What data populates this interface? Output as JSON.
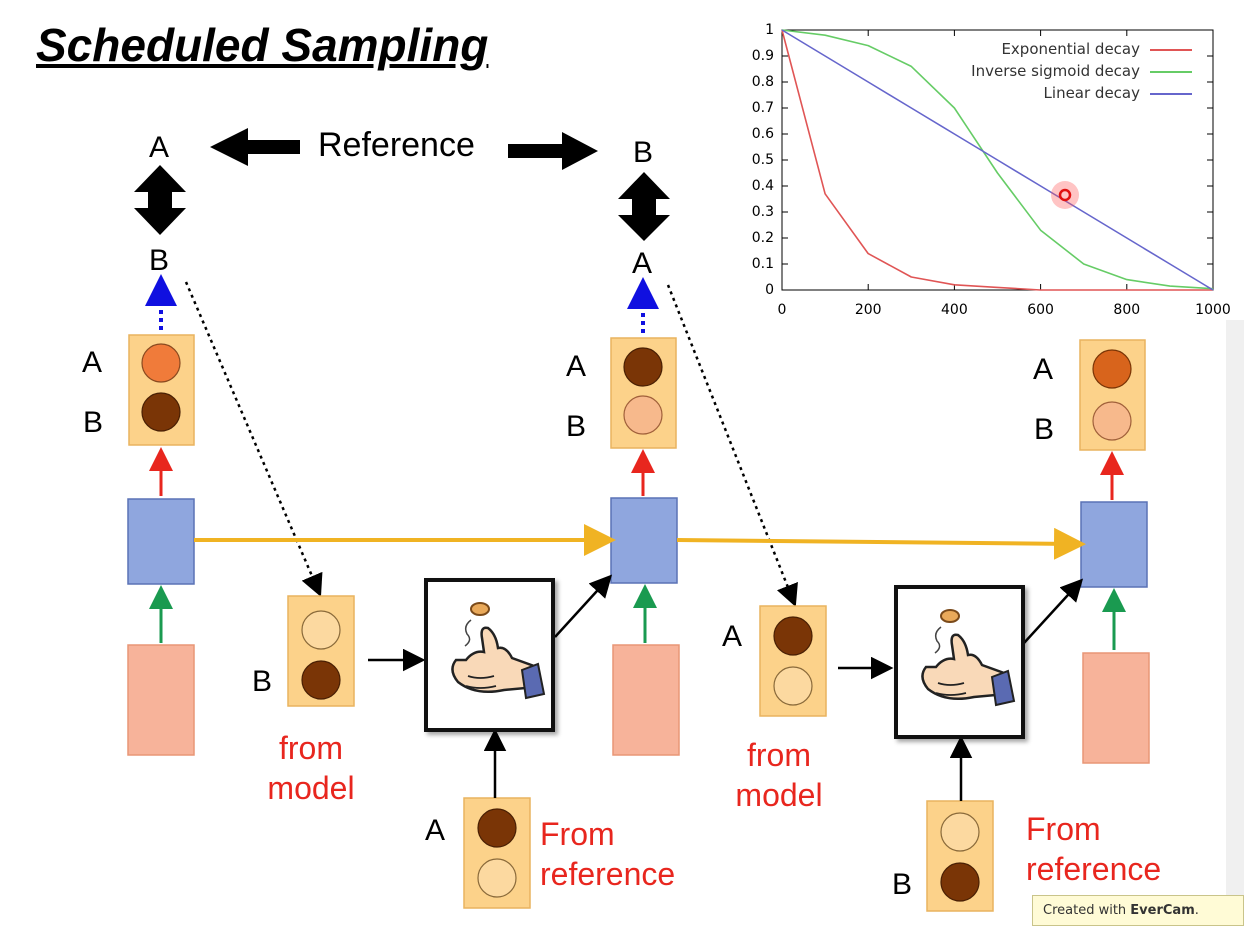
{
  "title": "Scheduled Sampling",
  "reference_label": "Reference",
  "top_left_pair": {
    "top": "A",
    "bottom": "B"
  },
  "top_mid_pair": {
    "top": "B",
    "bottom": "A"
  },
  "dist_labels": {
    "d1_a": "A",
    "d1_b": "B",
    "d2_a": "A",
    "d2_b": "B",
    "d3_a": "A",
    "d3_b": "B"
  },
  "model_boxes": {
    "m1": "B",
    "m2": "A"
  },
  "ref_boxes": {
    "r1": "A",
    "r2": "B"
  },
  "from_model_1": "from\nmodel",
  "from_model_2": "from\nmodel",
  "from_reference_1": "From\nreference",
  "from_reference_2": "From\nreference",
  "colors": {
    "dark_brown": "#7a3506",
    "orange": "#f07b3a",
    "dark_orange": "#d8641c",
    "light_peach": "#f7b98c",
    "pale": "#fcd9a0",
    "box_fill": "#fcd28a",
    "rnn_blue": "#8fa6de",
    "input_pink": "#f7b39a",
    "yellow_arrow": "#f0b323",
    "exp_red": "#e05555",
    "sig_green": "#66cc66",
    "lin_blue": "#6666cc"
  },
  "chart_data": {
    "type": "line",
    "x": [
      0,
      100,
      200,
      300,
      400,
      500,
      600,
      700,
      800,
      900,
      1000
    ],
    "series": [
      {
        "name": "Exponential decay",
        "color": "#e05555",
        "values": [
          1.0,
          0.37,
          0.14,
          0.05,
          0.02,
          0.01,
          0.0,
          0.0,
          0.0,
          0.0,
          0.0
        ]
      },
      {
        "name": "Inverse sigmoid decay",
        "color": "#66cc66",
        "values": [
          1.0,
          0.98,
          0.94,
          0.86,
          0.7,
          0.45,
          0.23,
          0.1,
          0.04,
          0.015,
          0.005
        ]
      },
      {
        "name": "Linear decay",
        "color": "#6666cc",
        "values": [
          1.0,
          0.9,
          0.8,
          0.7,
          0.6,
          0.5,
          0.4,
          0.3,
          0.2,
          0.1,
          0.0
        ]
      }
    ],
    "xlim": [
      0,
      1000
    ],
    "ylim": [
      0,
      1
    ],
    "xticks": [
      "0",
      "200",
      "400",
      "600",
      "800",
      "1000"
    ],
    "yticks": [
      "0",
      "0.1",
      "0.2",
      "0.3",
      "0.4",
      "0.5",
      "0.6",
      "0.7",
      "0.8",
      "0.9",
      "1"
    ],
    "legend_position": "top-right",
    "grid": false
  },
  "watermark": {
    "prefix": "Created with ",
    "brand": "EverCam",
    "suffix": "."
  }
}
